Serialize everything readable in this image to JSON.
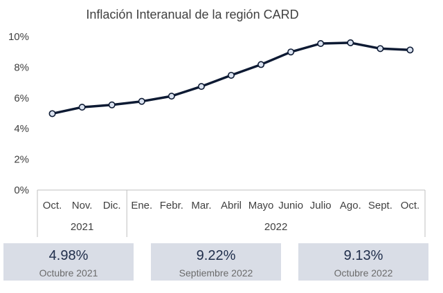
{
  "chart_data": {
    "type": "line",
    "title": "Inflación Interanual de la región CARD",
    "categories": [
      "Oct.",
      "Nov.",
      "Dic.",
      "Ene.",
      "Febr.",
      "Mar.",
      "Abril",
      "Mayo",
      "Junio",
      "Julio",
      "Ago.",
      "Sept.",
      "Oct."
    ],
    "year_groups": [
      {
        "label": "2021",
        "span": 3
      },
      {
        "label": "2022",
        "span": 10
      }
    ],
    "series": [
      {
        "values": [
          4.98,
          5.4,
          5.55,
          5.78,
          6.12,
          6.75,
          7.48,
          8.18,
          9.0,
          9.55,
          9.6,
          9.22,
          9.13
        ]
      }
    ],
    "ylim": [
      0,
      10
    ],
    "yticks": [
      "0%",
      "2%",
      "4%",
      "6%",
      "8%",
      "10%"
    ],
    "xlabel": "",
    "ylabel": "",
    "grid": false,
    "colors": {
      "line": "#0d1a33",
      "marker_fill": "#dbe3f1"
    }
  },
  "cards": [
    {
      "value": "4.98%",
      "label": "Octubre 2021"
    },
    {
      "value": "9.22%",
      "label": "Septiembre 2022"
    },
    {
      "value": "9.13%",
      "label": "Octubre 2022"
    }
  ]
}
